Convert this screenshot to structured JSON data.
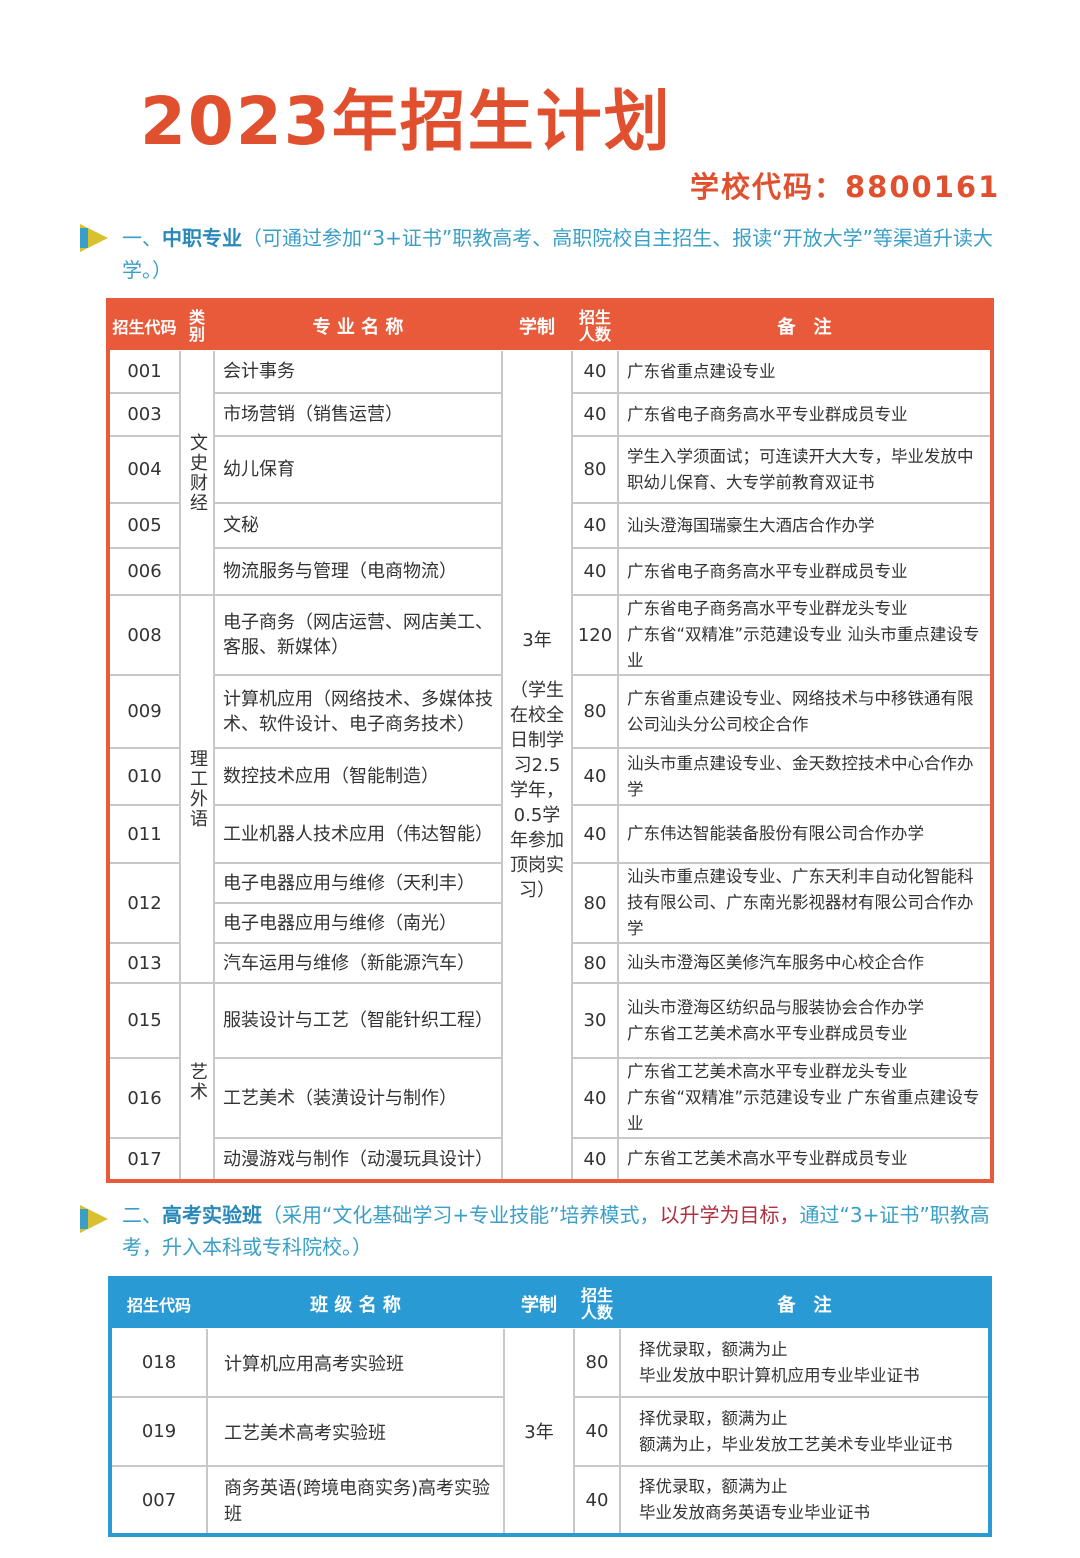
{
  "title": "2023年招生计划",
  "school_code": "学校代码：8800161",
  "section1": {
    "prefix": "一、",
    "name": "中职专业",
    "desc": "（可通过参加“3+证书”职教高考、高职院校自主招生、报读“开放大学”等渠道升读大学。）"
  },
  "table1": {
    "headers": {
      "code": "招生代码",
      "category": "类别",
      "name": "专 业 名 称",
      "duration": "学制",
      "count": "招生人数",
      "note": "备　注"
    },
    "duration": "3年\n\n（学生在校全日制学习2.5学年，0.5学年参加顶岗实习）",
    "categories": [
      {
        "label": "文史财经",
        "span": 5
      },
      {
        "label": "理工外语",
        "span": 7
      },
      {
        "label": "艺术",
        "span": 3
      }
    ],
    "rows": [
      {
        "code": "001",
        "names": [
          "会计事务"
        ],
        "count": "40",
        "note": "广东省重点建设专业"
      },
      {
        "code": "003",
        "names": [
          "市场营销（销售运营）"
        ],
        "count": "40",
        "note": "广东省电子商务高水平专业群成员专业"
      },
      {
        "code": "004",
        "names": [
          "幼儿保育"
        ],
        "count": "80",
        "note": "学生入学须面试；可连读开大大专，毕业发放中职幼儿保育、大专学前教育双证书"
      },
      {
        "code": "005",
        "names": [
          "文秘"
        ],
        "count": "40",
        "note": "汕头澄海国瑞豪生大酒店合作办学"
      },
      {
        "code": "006",
        "names": [
          "物流服务与管理（电商物流）"
        ],
        "count": "40",
        "note": "广东省电子商务高水平专业群成员专业"
      },
      {
        "code": "008",
        "names": [
          "电子商务（网店运营、网店美工、客服、新媒体）"
        ],
        "count": "120",
        "note": "广东省电子商务高水平专业群龙头专业\n广东省“双精准”示范建设专业 汕头市重点建设专业"
      },
      {
        "code": "009",
        "names": [
          "计算机应用（网络技术、多媒体技术、软件设计、电子商务技术）"
        ],
        "count": "80",
        "note": "广东省重点建设专业、网络技术与中移铁通有限公司汕头分公司校企合作"
      },
      {
        "code": "010",
        "names": [
          "数控技术应用（智能制造）"
        ],
        "count": "40",
        "note": "汕头市重点建设专业、金天数控技术中心合作办学"
      },
      {
        "code": "011",
        "names": [
          "工业机器人技术应用（伟达智能）"
        ],
        "count": "40",
        "note": "广东伟达智能装备股份有限公司合作办学"
      },
      {
        "code": "012",
        "names": [
          "电子电器应用与维修（天利丰）",
          "电子电器应用与维修（南光）"
        ],
        "count": "80",
        "note": "汕头市重点建设专业、广东天利丰自动化智能科技有限公司、广东南光影视器材有限公司合作办学"
      },
      {
        "code": "013",
        "names": [
          "汽车运用与维修（新能源汽车）"
        ],
        "count": "80",
        "note": "汕头市澄海区美修汽车服务中心校企合作"
      },
      {
        "code": "015",
        "names": [
          "服装设计与工艺（智能针织工程）"
        ],
        "count": "30",
        "note": "汕头市澄海区纺织品与服装协会合作办学\n广东省工艺美术高水平专业群成员专业"
      },
      {
        "code": "016",
        "names": [
          "工艺美术（装潢设计与制作）"
        ],
        "count": "40",
        "note": "广东省工艺美术高水平专业群龙头专业\n广东省“双精准”示范建设专业 广东省重点建设专业"
      },
      {
        "code": "017",
        "names": [
          "动漫游戏与制作（动漫玩具设计）"
        ],
        "count": "40",
        "note": "广东省工艺美术高水平专业群成员专业"
      }
    ]
  },
  "section2": {
    "prefix": "二、",
    "name": "高考实验班",
    "desc_a": "（采用“文化基础学习+专业技能”培养模式，",
    "desc_red": "以升学为目标，",
    "desc_b": "通过“3+证书”职教高考，升入本科或专科院校。）"
  },
  "table2": {
    "headers": {
      "code": "招生代码",
      "name": "班 级 名 称",
      "duration": "学制",
      "count": "招生人数",
      "note": "备　注"
    },
    "duration": "3年",
    "rows": [
      {
        "code": "018",
        "name": "计算机应用高考实验班",
        "count": "80",
        "note": "择优录取，额满为止\n毕业发放中职计算机应用专业毕业证书"
      },
      {
        "code": "019",
        "name": "工艺美术高考实验班",
        "count": "40",
        "note": "择优录取，额满为止\n额满为止，毕业发放工艺美术专业毕业证书"
      },
      {
        "code": "007",
        "name": "商务英语(跨境电商实务)高考实验班",
        "count": "40",
        "note": "择优录取，额满为止\n毕业发放商务英语专业毕业证书"
      }
    ]
  },
  "colors": {
    "accent_red": "#e85a3a",
    "accent_blue": "#2a9ad4"
  }
}
